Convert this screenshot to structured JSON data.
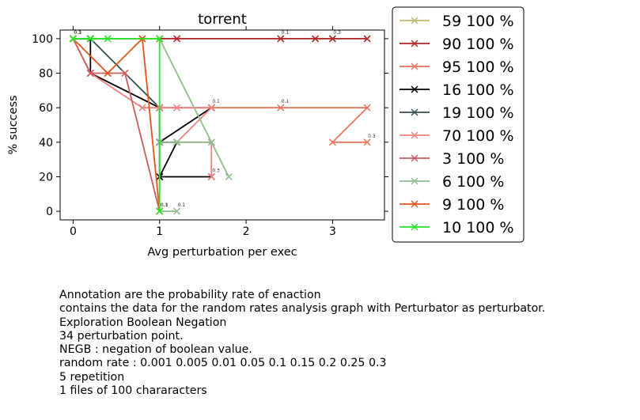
{
  "chart_data": {
    "type": "line",
    "title": "torrent",
    "xlabel": "Avg perturbation per exec",
    "ylabel": "% success",
    "xlim": [
      -0.15,
      3.6
    ],
    "ylim": [
      -5,
      105
    ],
    "xticks": [
      "0",
      "1",
      "2",
      "3"
    ],
    "yticks": [
      "0",
      "20",
      "40",
      "60",
      "80",
      "100"
    ],
    "grid": false,
    "legend_position": "outside-right",
    "marker": "x",
    "series": [
      {
        "name": "59 100 %",
        "color": "#bdb76b",
        "x": [
          0,
          0.2
        ],
        "y": [
          100,
          100
        ]
      },
      {
        "name": "90 100 %",
        "color": "#b22222",
        "x": [
          0,
          0.2,
          1,
          1.2,
          2.4,
          2.8,
          3.0,
          3.4
        ],
        "y": [
          100,
          100,
          100,
          100,
          100,
          100,
          100,
          100
        ]
      },
      {
        "name": "95 100 %",
        "color": "#e9735e",
        "x": [
          0,
          0.2,
          1.0,
          1.6,
          2.4,
          3.4,
          3.0,
          3.4
        ],
        "y": [
          100,
          80,
          60,
          60,
          60,
          60,
          40,
          40
        ]
      },
      {
        "name": "16 100 %",
        "color": "#000000",
        "x": [
          0,
          0.2,
          0.2,
          1.0,
          1.0,
          1.6,
          1.0,
          1.0,
          1.2,
          1.0,
          1.0,
          1.6
        ],
        "y": [
          100,
          100,
          80,
          60,
          40,
          60,
          40,
          20,
          40,
          40,
          20,
          20
        ]
      },
      {
        "name": "19 100 %",
        "color": "#2f4f4f",
        "x": [
          0,
          0.2,
          1.0
        ],
        "y": [
          100,
          100,
          60
        ]
      },
      {
        "name": "70 100 %",
        "color": "#f08080",
        "x": [
          0,
          0.2,
          0.8,
          1.0,
          1.2,
          1.6,
          1.2,
          1.6,
          1.6
        ],
        "y": [
          100,
          80,
          60,
          60,
          60,
          60,
          40,
          40,
          20
        ]
      },
      {
        "name": "3 100 %",
        "color": "#cd5c5c",
        "x": [
          0,
          0.2,
          0.4,
          0.6,
          1.0
        ],
        "y": [
          100,
          80,
          80,
          80,
          0
        ]
      },
      {
        "name": "6 100 %",
        "color": "#8fbc8f",
        "x": [
          0,
          0.2,
          1.0,
          1.8,
          1.6,
          1.2,
          1.0,
          1.0,
          1.2
        ],
        "y": [
          100,
          100,
          100,
          20,
          40,
          40,
          40,
          0,
          0
        ]
      },
      {
        "name": "9 100 %",
        "color": "#e8541c",
        "x": [
          0,
          0.4,
          0.8,
          0.8,
          1.0
        ],
        "y": [
          100,
          80,
          100,
          100,
          0
        ]
      },
      {
        "name": "10 100 %",
        "color": "#22e822",
        "x": [
          0,
          0.2,
          0.4,
          1.0,
          1.0
        ],
        "y": [
          100,
          100,
          100,
          100,
          0
        ]
      }
    ],
    "annotations": [
      {
        "x": 0,
        "y": 100,
        "text": "0.1"
      },
      {
        "x": 0,
        "y": 100,
        "text": "0.3"
      },
      {
        "x": 2.4,
        "y": 100,
        "text": "0.1"
      },
      {
        "x": 3.0,
        "y": 100,
        "text": "0.3"
      },
      {
        "x": 1.6,
        "y": 60,
        "text": "0.1"
      },
      {
        "x": 2.4,
        "y": 60,
        "text": "0.1"
      },
      {
        "x": 3.4,
        "y": 40,
        "text": "0.3"
      },
      {
        "x": 1.6,
        "y": 20,
        "text": "0.3"
      },
      {
        "x": 1.0,
        "y": 0,
        "text": "0.1"
      },
      {
        "x": 1.0,
        "y": 0,
        "text": "0.3"
      },
      {
        "x": 1.2,
        "y": 0,
        "text": "0.1"
      }
    ]
  },
  "caption": [
    "Annotation are the probability rate of enaction",
    "contains the data for the random rates analysis graph with Perturbator as perturbator.",
    "Exploration Boolean Negation",
    "34 perturbation point.",
    "NEGB : negation of boolean value.",
    "random rate : 0.001 0.005 0.01 0.05 0.1 0.15 0.2 0.25 0.3",
    "5 repetition",
    "1 files of 100 chararacters"
  ]
}
